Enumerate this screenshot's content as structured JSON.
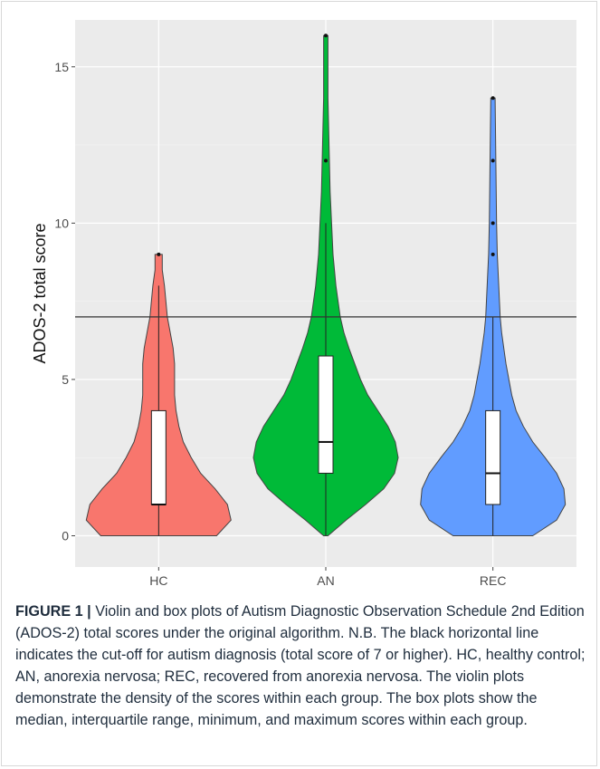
{
  "chart_data": {
    "type": "violin",
    "ylabel": "ADOS-2 total score",
    "xlabel": "",
    "ylim": [
      -1,
      16.5
    ],
    "y_ticks": [
      0,
      5,
      10,
      15
    ],
    "y_tick_labels": [
      "0",
      "5",
      "10",
      "15"
    ],
    "cutoff_line": 7,
    "grid": true,
    "categories": [
      "HC",
      "AN",
      "REC"
    ],
    "groups": [
      {
        "name": "HC",
        "color": "#f8766d",
        "box": {
          "min": 0,
          "q1": 1,
          "median": 1,
          "q3": 4,
          "max": 8
        },
        "outliers": [
          9
        ],
        "violin_profile": [
          [
            0,
            0.8
          ],
          [
            0.5,
            1.0
          ],
          [
            1,
            0.95
          ],
          [
            1.5,
            0.78
          ],
          [
            2,
            0.58
          ],
          [
            2.5,
            0.45
          ],
          [
            3,
            0.34
          ],
          [
            3.5,
            0.28
          ],
          [
            4,
            0.24
          ],
          [
            4.5,
            0.22
          ],
          [
            5,
            0.22
          ],
          [
            5.5,
            0.22
          ],
          [
            6,
            0.2
          ],
          [
            6.5,
            0.16
          ],
          [
            7,
            0.12
          ],
          [
            7.5,
            0.1
          ],
          [
            8,
            0.08
          ],
          [
            8.5,
            0.05
          ],
          [
            9,
            0.05
          ]
        ]
      },
      {
        "name": "AN",
        "color": "#00ba38",
        "box": {
          "min": 0,
          "q1": 2,
          "median": 3,
          "q3": 5.75,
          "max": 10
        },
        "outliers": [
          12,
          16
        ],
        "violin_profile": [
          [
            0,
            0.03
          ],
          [
            0.5,
            0.28
          ],
          [
            1,
            0.55
          ],
          [
            1.5,
            0.8
          ],
          [
            2,
            0.95
          ],
          [
            2.5,
            1.0
          ],
          [
            3,
            0.96
          ],
          [
            3.5,
            0.86
          ],
          [
            4,
            0.72
          ],
          [
            4.5,
            0.58
          ],
          [
            5,
            0.48
          ],
          [
            5.5,
            0.4
          ],
          [
            6,
            0.32
          ],
          [
            6.5,
            0.25
          ],
          [
            7,
            0.2
          ],
          [
            8,
            0.14
          ],
          [
            9,
            0.1
          ],
          [
            10,
            0.08
          ],
          [
            11,
            0.06
          ],
          [
            12,
            0.05
          ],
          [
            13,
            0.04
          ],
          [
            14,
            0.03
          ],
          [
            15,
            0.03
          ],
          [
            16,
            0.03
          ]
        ]
      },
      {
        "name": "REC",
        "color": "#619cff",
        "box": {
          "min": 0,
          "q1": 1,
          "median": 2,
          "q3": 4,
          "max": 7
        },
        "outliers": [
          9,
          10,
          12,
          14
        ],
        "violin_profile": [
          [
            0,
            0.55
          ],
          [
            0.5,
            0.88
          ],
          [
            1,
            1.0
          ],
          [
            1.5,
            0.98
          ],
          [
            2,
            0.88
          ],
          [
            2.5,
            0.72
          ],
          [
            3,
            0.55
          ],
          [
            3.5,
            0.42
          ],
          [
            4,
            0.32
          ],
          [
            4.5,
            0.26
          ],
          [
            5,
            0.22
          ],
          [
            5.5,
            0.18
          ],
          [
            6,
            0.15
          ],
          [
            6.5,
            0.12
          ],
          [
            7,
            0.1
          ],
          [
            8,
            0.08
          ],
          [
            9,
            0.06
          ],
          [
            10,
            0.05
          ],
          [
            11,
            0.045
          ],
          [
            12,
            0.04
          ],
          [
            13,
            0.035
          ],
          [
            14,
            0.03
          ]
        ]
      }
    ]
  },
  "caption": {
    "label": "FIGURE 1",
    "separator": " | ",
    "text": "Violin and box plots of Autism Diagnostic Observation Schedule 2nd Edition (ADOS-2) total scores under the original algorithm. N.B. The black horizontal line indicates the cut-off for autism diagnosis (total score of 7 or higher). HC, healthy control; AN, anorexia nervosa; REC, recovered from anorexia nervosa. The violin plots demonstrate the density of the scores within each group. The box plots show the median, interquartile range, minimum, and maximum scores within each group."
  }
}
